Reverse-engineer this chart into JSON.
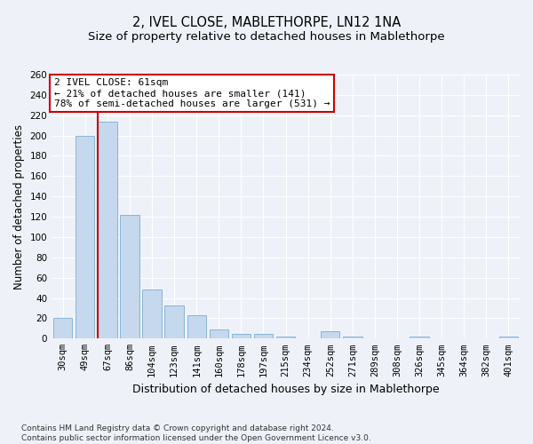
{
  "title": "2, IVEL CLOSE, MABLETHORPE, LN12 1NA",
  "subtitle": "Size of property relative to detached houses in Mablethorpe",
  "xlabel": "Distribution of detached houses by size in Mablethorpe",
  "ylabel": "Number of detached properties",
  "footnote": "Contains HM Land Registry data © Crown copyright and database right 2024.\nContains public sector information licensed under the Open Government Licence v3.0.",
  "categories": [
    "30sqm",
    "49sqm",
    "67sqm",
    "86sqm",
    "104sqm",
    "123sqm",
    "141sqm",
    "160sqm",
    "178sqm",
    "197sqm",
    "215sqm",
    "234sqm",
    "252sqm",
    "271sqm",
    "289sqm",
    "308sqm",
    "326sqm",
    "345sqm",
    "364sqm",
    "382sqm",
    "401sqm"
  ],
  "values": [
    20,
    200,
    214,
    122,
    48,
    33,
    23,
    9,
    5,
    5,
    2,
    0,
    7,
    2,
    0,
    0,
    2,
    0,
    0,
    0,
    2
  ],
  "bar_color": "#c5d8ee",
  "bar_edge_color": "#7aadd4",
  "vline_x_index": 2,
  "vline_color": "#cc0000",
  "annotation_text": "2 IVEL CLOSE: 61sqm\n← 21% of detached houses are smaller (141)\n78% of semi-detached houses are larger (531) →",
  "annotation_box_color": "white",
  "annotation_box_edge_color": "#cc0000",
  "ylim": [
    0,
    260
  ],
  "yticks": [
    0,
    20,
    40,
    60,
    80,
    100,
    120,
    140,
    160,
    180,
    200,
    220,
    240,
    260
  ],
  "background_color": "#eef2f8",
  "plot_bg_color": "#eef2f8",
  "grid_color": "white",
  "title_fontsize": 10.5,
  "subtitle_fontsize": 9.5,
  "xlabel_fontsize": 9,
  "ylabel_fontsize": 8.5,
  "tick_fontsize": 7.5,
  "annotation_fontsize": 8,
  "footnote_fontsize": 6.5
}
